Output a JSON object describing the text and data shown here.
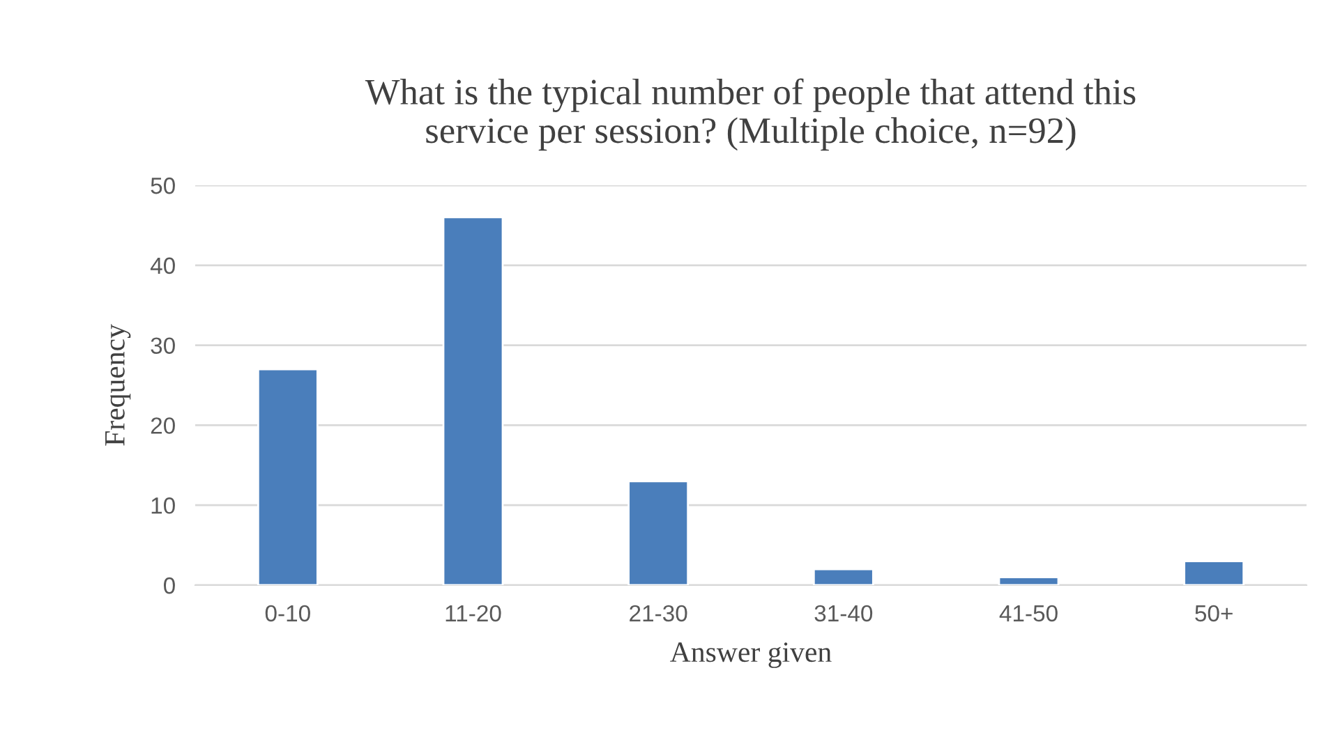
{
  "chart_data": {
    "type": "bar",
    "title": "What is the typical number of people that attend this\nservice per session? (Multiple choice, n=92)",
    "xlabel": "Answer given",
    "ylabel": "Frequency",
    "categories": [
      "0-10",
      "11-20",
      "21-30",
      "31-40",
      "41-50",
      "50+"
    ],
    "values": [
      27,
      46,
      13,
      2,
      1,
      3
    ],
    "color": "#4a7ebb",
    "ylim": [
      0,
      50
    ],
    "yticks": [
      0,
      10,
      20,
      30,
      40,
      50
    ],
    "grid": "y",
    "legend": false
  }
}
